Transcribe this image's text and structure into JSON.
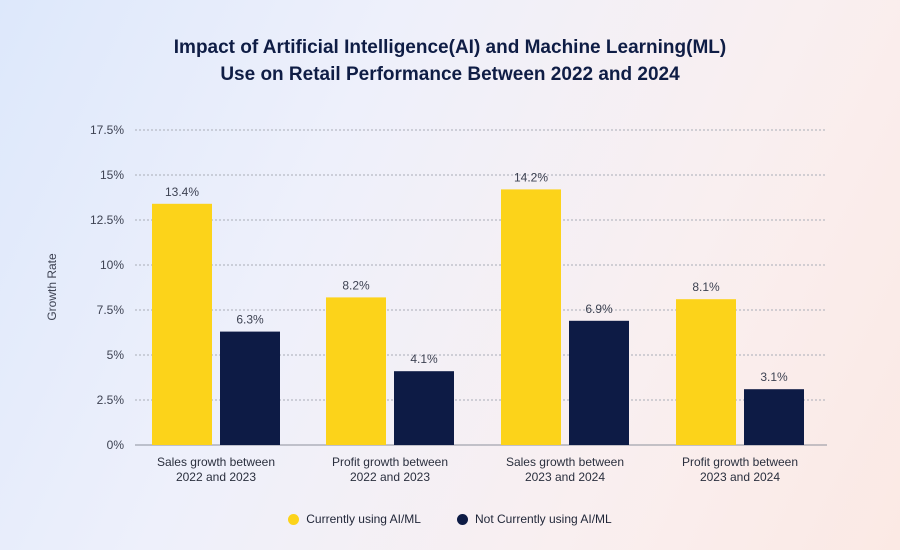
{
  "chart_data": {
    "type": "bar",
    "title_lines": [
      "Impact of Artificial Intelligence(AI) and Machine Learning(ML)",
      "Use on Retail Performance Between 2022 and 2024"
    ],
    "ylabel": "Growth Rate",
    "xlabel": "",
    "ylim": [
      0,
      17.5
    ],
    "yticks": [
      0,
      2.5,
      5,
      7.5,
      10,
      12.5,
      15,
      17.5
    ],
    "ytick_labels": [
      "0%",
      "2.5%",
      "5%",
      "7.5%",
      "10%",
      "12.5%",
      "15%",
      "17.5%"
    ],
    "grid": true,
    "legend_position": "bottom",
    "categories": [
      [
        "Sales growth between",
        "2022 and 2023"
      ],
      [
        "Profit growth between",
        "2022 and 2023"
      ],
      [
        "Sales growth between",
        "2023 and 2024"
      ],
      [
        "Profit growth between",
        "2023 and 2024"
      ]
    ],
    "series": [
      {
        "name": "Currently using AI/ML",
        "color": "#fcd31a",
        "values": [
          13.4,
          8.2,
          14.2,
          8.1
        ],
        "labels": [
          "13.4%",
          "8.2%",
          "14.2%",
          "8.1%"
        ]
      },
      {
        "name": "Not Currently using AI/ML",
        "color": "#0d1b45",
        "values": [
          6.3,
          4.1,
          6.9,
          3.1
        ],
        "labels": [
          "6.3%",
          "4.1%",
          "6.9%",
          "3.1%"
        ]
      }
    ]
  }
}
